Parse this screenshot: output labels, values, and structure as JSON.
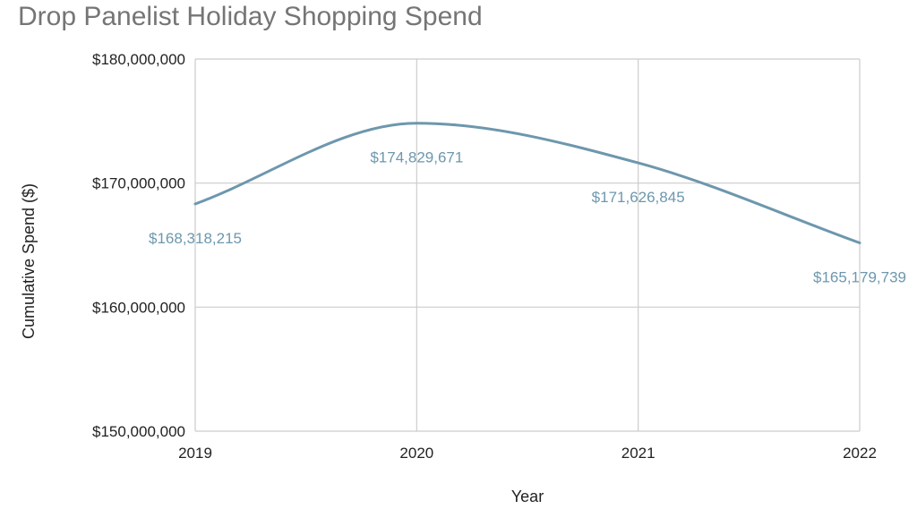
{
  "chart_data": {
    "type": "line",
    "title": "Drop Panelist Holiday Shopping Spend",
    "xlabel": "Year",
    "ylabel": "Cumulative Spend ($)",
    "x": [
      "2019",
      "2020",
      "2021",
      "2022"
    ],
    "series": [
      {
        "values": [
          168318215,
          174829671,
          171626845,
          165179739
        ]
      }
    ],
    "data_labels": [
      "$168,318,215",
      "$174,829,671",
      "$171,626,845",
      "$165,179,739"
    ],
    "ylim": [
      150000000,
      180000000
    ],
    "yticks": [
      150000000,
      160000000,
      170000000,
      180000000
    ],
    "ytick_labels": [
      "$150,000,000",
      "$160,000,000",
      "$170,000,000",
      "$180,000,000"
    ],
    "grid": true,
    "legend": "none",
    "line_style": "smooth",
    "colors": {
      "series": "#6d97ad",
      "grid": "#cccccc",
      "title": "#757575",
      "text": "#222222"
    }
  }
}
